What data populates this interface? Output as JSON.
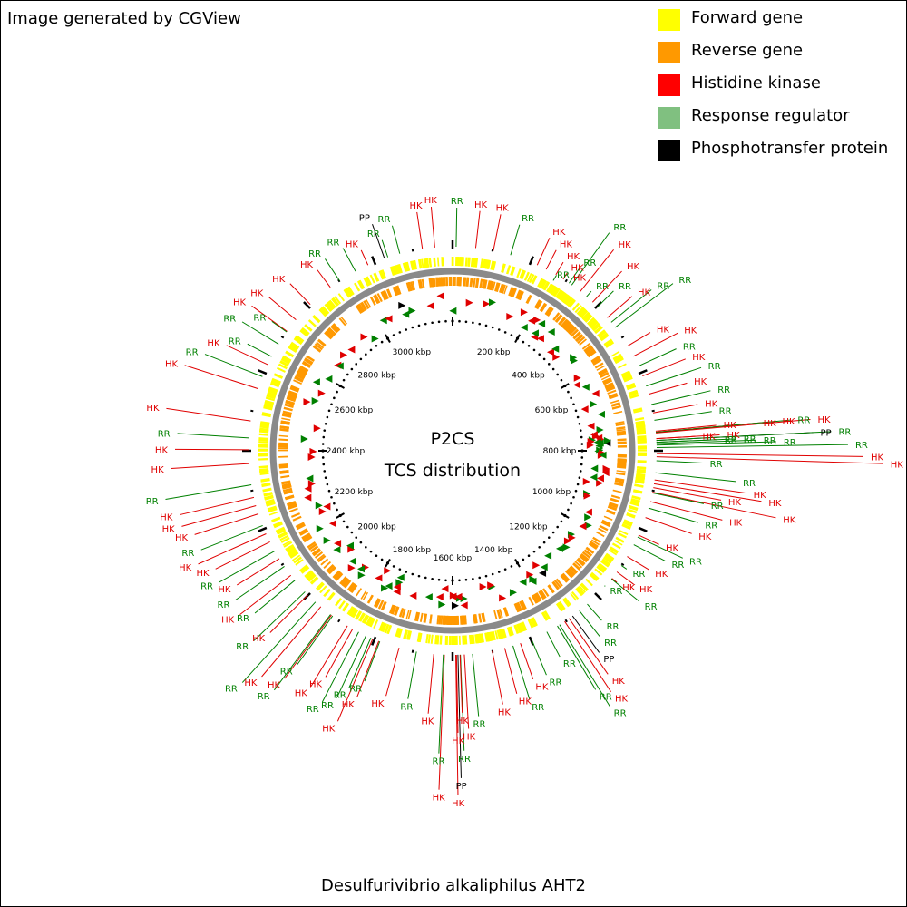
{
  "header": {
    "credit": "Image generated by CGView"
  },
  "legend": [
    {
      "label": "Forward gene",
      "color": "#ffff00"
    },
    {
      "label": "Reverse gene",
      "color": "#ff9900"
    },
    {
      "label": "Histidine kinase",
      "color": "#ff0000"
    },
    {
      "label": "Response regulator",
      "color": "#80c080"
    },
    {
      "label": "Phosphotransfer protein",
      "color": "#000000"
    }
  ],
  "map": {
    "center_title": "P2CS",
    "center_subtitle": "TCS distribution",
    "organism": "Desulfurivibrio alkaliphilus AHT2",
    "scale_labels": [
      "200 kbp",
      "400 kbp",
      "600 kbp",
      "800 kbp",
      "1000 kbp",
      "1200 kbp",
      "1400 kbp",
      "1600 kbp",
      "1800 kbp",
      "2000 kbp",
      "2200 kbp",
      "2400 kbp",
      "2600 kbp",
      "2800 kbp",
      "3000 kbp"
    ],
    "feature_labels": [
      {
        "text": "PP",
        "type": "PP",
        "a": 340.5,
        "r": 265
      },
      {
        "text": "RR",
        "type": "RR",
        "a": 341.5,
        "r": 245
      },
      {
        "text": "RR",
        "type": "RR",
        "a": 345.0,
        "r": 257
      },
      {
        "text": "HK",
        "type": "HK",
        "a": 351.5,
        "r": 266
      },
      {
        "text": "HK",
        "type": "HK",
        "a": 355.0,
        "r": 270
      },
      {
        "text": "RR",
        "type": "RR",
        "a": 1.0,
        "r": 268
      },
      {
        "text": "HK",
        "type": "HK",
        "a": 6.5,
        "r": 266
      },
      {
        "text": "HK",
        "type": "HK",
        "a": 11.5,
        "r": 266
      },
      {
        "text": "RR",
        "type": "RR",
        "a": 16.5,
        "r": 260
      },
      {
        "text": "HK",
        "type": "HK",
        "a": 24.5,
        "r": 258
      },
      {
        "text": "HK",
        "type": "HK",
        "a": 27.3,
        "r": 249
      },
      {
        "text": "HK",
        "type": "HK",
        "a": 30.4,
        "r": 241
      },
      {
        "text": "RR",
        "type": "RR",
        "a": 30.6,
        "r": 218
      },
      {
        "text": "HK",
        "type": "HK",
        "a": 32.8,
        "r": 233
      },
      {
        "text": "HK",
        "type": "HK",
        "a": 34.8,
        "r": 225
      },
      {
        "text": "RR",
        "type": "RR",
        "a": 34.8,
        "r": 245
      },
      {
        "text": "RR",
        "type": "RR",
        "a": 35.7,
        "r": 296
      },
      {
        "text": "HK",
        "type": "HK",
        "a": 38.7,
        "r": 284
      },
      {
        "text": "RR",
        "type": "RR",
        "a": 41.0,
        "r": 233
      },
      {
        "text": "HK",
        "type": "HK",
        "a": 43.3,
        "r": 272
      },
      {
        "text": "RR",
        "type": "RR",
        "a": 45.2,
        "r": 250
      },
      {
        "text": "HK",
        "type": "HK",
        "a": 49.3,
        "r": 261
      },
      {
        "text": "RR",
        "type": "RR",
        "a": 51.0,
        "r": 282
      },
      {
        "text": "RR",
        "type": "RR",
        "a": 52.8,
        "r": 305
      },
      {
        "text": "HK",
        "type": "HK",
        "a": 59.1,
        "r": 254
      },
      {
        "text": "HK",
        "type": "HK",
        "a": 62.4,
        "r": 280
      },
      {
        "text": "RR",
        "type": "RR",
        "a": 65.5,
        "r": 271
      },
      {
        "text": "HK",
        "type": "HK",
        "a": 68.5,
        "r": 276
      },
      {
        "text": "RR",
        "type": "RR",
        "a": 71.5,
        "r": 289
      },
      {
        "text": "HK",
        "type": "HK",
        "a": 73.9,
        "r": 269
      },
      {
        "text": "RR",
        "type": "RR",
        "a": 76.9,
        "r": 292
      },
      {
        "text": "HK",
        "type": "HK",
        "a": 79.3,
        "r": 275
      },
      {
        "text": "RR",
        "type": "RR",
        "a": 81.4,
        "r": 289
      },
      {
        "text": "HK",
        "type": "HK",
        "a": 84.5,
        "r": 292
      },
      {
        "text": "HK",
        "type": "HK",
        "a": 84.8,
        "r": 336
      },
      {
        "text": "HK",
        "type": "HK",
        "a": 84.8,
        "r": 357
      },
      {
        "text": "RR",
        "type": "RR",
        "a": 84.8,
        "r": 374
      },
      {
        "text": "HK",
        "type": "HK",
        "a": 85.0,
        "r": 396
      },
      {
        "text": "HK",
        "type": "HK",
        "a": 86.6,
        "r": 268
      },
      {
        "text": "HK",
        "type": "HK",
        "a": 86.6,
        "r": 295
      },
      {
        "text": "PP",
        "type": "PP",
        "a": 87.1,
        "r": 398
      },
      {
        "text": "RR",
        "type": "RR",
        "a": 87.1,
        "r": 418
      },
      {
        "text": "RR",
        "type": "RR",
        "a": 87.6,
        "r": 292
      },
      {
        "text": "RR",
        "type": "RR",
        "a": 87.6,
        "r": 313
      },
      {
        "text": "RR",
        "type": "RR",
        "a": 88.0,
        "r": 335
      },
      {
        "text": "RR",
        "type": "RR",
        "a": 88.4,
        "r": 357
      },
      {
        "text": "RR",
        "type": "RR",
        "a": 89.1,
        "r": 436
      },
      {
        "text": "HK",
        "type": "HK",
        "a": 90.8,
        "r": 453
      },
      {
        "text": "HK",
        "type": "HK",
        "a": 91.7,
        "r": 475
      },
      {
        "text": "RR",
        "type": "RR",
        "a": 92.8,
        "r": 276
      },
      {
        "text": "RR",
        "type": "RR",
        "a": 96.2,
        "r": 314
      },
      {
        "text": "HK",
        "type": "HK",
        "a": 98.2,
        "r": 327
      },
      {
        "text": "HK",
        "type": "HK",
        "a": 99.3,
        "r": 345
      },
      {
        "text": "HK",
        "type": "HK",
        "a": 100.4,
        "r": 301
      },
      {
        "text": "HK",
        "type": "HK",
        "a": 101.7,
        "r": 364
      },
      {
        "text": "RR",
        "type": "RR",
        "a": 101.9,
        "r": 283
      },
      {
        "text": "HK",
        "type": "HK",
        "a": 104.4,
        "r": 307
      },
      {
        "text": "RR",
        "type": "RR",
        "a": 106.3,
        "r": 282
      },
      {
        "text": "HK",
        "type": "HK",
        "a": 109.1,
        "r": 279
      },
      {
        "text": "HK",
        "type": "HK",
        "a": 114.4,
        "r": 250
      },
      {
        "text": "RR",
        "type": "RR",
        "a": 115.0,
        "r": 280
      },
      {
        "text": "RR",
        "type": "RR",
        "a": 117.4,
        "r": 264
      },
      {
        "text": "HK",
        "type": "HK",
        "a": 121.2,
        "r": 253
      },
      {
        "text": "RR",
        "type": "RR",
        "a": 124.2,
        "r": 232
      },
      {
        "text": "HK",
        "type": "HK",
        "a": 126.4,
        "r": 248
      },
      {
        "text": "HK",
        "type": "HK",
        "a": 128.7,
        "r": 232
      },
      {
        "text": "RR",
        "type": "RR",
        "a": 128.9,
        "r": 264
      },
      {
        "text": "RR",
        "type": "RR",
        "a": 131.6,
        "r": 224
      },
      {
        "text": "RR",
        "type": "RR",
        "a": 138.7,
        "r": 249
      },
      {
        "text": "RR",
        "type": "RR",
        "a": 141.6,
        "r": 261
      },
      {
        "text": "PP",
        "type": "PP",
        "a": 144.0,
        "r": 275
      },
      {
        "text": "HK",
        "type": "HK",
        "a": 145.2,
        "r": 300
      },
      {
        "text": "HK",
        "type": "HK",
        "a": 146.7,
        "r": 318
      },
      {
        "text": "RR",
        "type": "RR",
        "a": 148.4,
        "r": 331
      },
      {
        "text": "RR",
        "type": "RR",
        "a": 149.1,
        "r": 307
      },
      {
        "text": "RR",
        "type": "RR",
        "a": 152.5,
        "r": 256
      },
      {
        "text": "RR",
        "type": "RR",
        "a": 157.3,
        "r": 268
      },
      {
        "text": "HK",
        "type": "HK",
        "a": 160.6,
        "r": 267
      },
      {
        "text": "RR",
        "type": "RR",
        "a": 162.8,
        "r": 287
      },
      {
        "text": "HK",
        "type": "HK",
        "a": 165.2,
        "r": 277
      },
      {
        "text": "HK",
        "type": "HK",
        "a": 168.8,
        "r": 285
      },
      {
        "text": "RR",
        "type": "RR",
        "a": 174.4,
        "r": 294
      },
      {
        "text": "HK",
        "type": "HK",
        "a": 176.7,
        "r": 307
      },
      {
        "text": "RR",
        "type": "RR",
        "a": 177.8,
        "r": 331
      },
      {
        "text": "PP",
        "type": "PP",
        "a": 178.5,
        "r": 361
      },
      {
        "text": "HK",
        "type": "HK",
        "a": 179.1,
        "r": 380
      },
      {
        "text": "HK",
        "type": "HK",
        "a": 178.9,
        "r": 311
      },
      {
        "text": "HK",
        "type": "HK",
        "a": 177.9,
        "r": 289
      },
      {
        "text": "RR",
        "type": "RR",
        "a": 182.6,
        "r": 334
      },
      {
        "text": "HK",
        "type": "HK",
        "a": 182.3,
        "r": 374
      },
      {
        "text": "HK",
        "type": "HK",
        "a": 185.3,
        "r": 291
      },
      {
        "text": "RR",
        "type": "RR",
        "a": 190.2,
        "r": 278
      },
      {
        "text": "HK",
        "type": "HK",
        "a": 195.2,
        "r": 280
      },
      {
        "text": "RR",
        "type": "RR",
        "a": 200.9,
        "r": 272
      },
      {
        "text": "HK",
        "type": "HK",
        "a": 201.2,
        "r": 291
      },
      {
        "text": "HK",
        "type": "HK",
        "a": 203.0,
        "r": 324
      },
      {
        "text": "RR",
        "type": "RR",
        "a": 203.6,
        "r": 285
      },
      {
        "text": "RR",
        "type": "RR",
        "a": 205.1,
        "r": 301
      },
      {
        "text": "RR",
        "type": "RR",
        "a": 207.4,
        "r": 312
      },
      {
        "text": "HK",
        "type": "HK",
        "a": 209.3,
        "r": 286
      },
      {
        "text": "HK",
        "type": "HK",
        "a": 211.0,
        "r": 303
      },
      {
        "text": "RR",
        "type": "RR",
        "a": 216.0,
        "r": 292
      },
      {
        "text": "HK",
        "type": "HK",
        "a": 216.4,
        "r": 312
      },
      {
        "text": "RR",
        "type": "RR",
        "a": 216.7,
        "r": 329
      },
      {
        "text": "HK",
        "type": "HK",
        "a": 220.2,
        "r": 326
      },
      {
        "text": "RR",
        "type": "RR",
        "a": 222.2,
        "r": 345
      },
      {
        "text": "HK",
        "type": "HK",
        "a": 225.1,
        "r": 284
      },
      {
        "text": "RR",
        "type": "RR",
        "a": 226.3,
        "r": 303
      },
      {
        "text": "RR",
        "type": "RR",
        "a": 230.6,
        "r": 282
      },
      {
        "text": "HK",
        "type": "HK",
        "a": 232.4,
        "r": 296
      },
      {
        "text": "RR",
        "type": "RR",
        "a": 235.5,
        "r": 290
      },
      {
        "text": "HK",
        "type": "HK",
        "a": 238.1,
        "r": 280
      },
      {
        "text": "RR",
        "type": "RR",
        "a": 240.6,
        "r": 295
      },
      {
        "text": "HK",
        "type": "HK",
        "a": 243.5,
        "r": 292
      },
      {
        "text": "HK",
        "type": "HK",
        "a": 246.0,
        "r": 307
      },
      {
        "text": "RR",
        "type": "RR",
        "a": 248.5,
        "r": 298
      },
      {
        "text": "HK",
        "type": "HK",
        "a": 252.0,
        "r": 299
      },
      {
        "text": "HK",
        "type": "HK",
        "a": 254.4,
        "r": 310
      },
      {
        "text": "HK",
        "type": "HK",
        "a": 256.8,
        "r": 309
      },
      {
        "text": "RR",
        "type": "RR",
        "a": 260.4,
        "r": 321
      },
      {
        "text": "HK",
        "type": "HK",
        "a": 266.4,
        "r": 311
      },
      {
        "text": "HK",
        "type": "HK",
        "a": 270.3,
        "r": 306
      },
      {
        "text": "RR",
        "type": "RR",
        "a": 273.6,
        "r": 304
      },
      {
        "text": "HK",
        "type": "HK",
        "a": 278.4,
        "r": 319
      },
      {
        "text": "HK",
        "type": "HK",
        "a": 287.7,
        "r": 310
      },
      {
        "text": "RR",
        "type": "RR",
        "a": 291.3,
        "r": 293
      },
      {
        "text": "HK",
        "type": "HK",
        "a": 295.0,
        "r": 275
      },
      {
        "text": "RR",
        "type": "RR",
        "a": 297.5,
        "r": 255
      },
      {
        "text": "RR",
        "type": "RR",
        "a": 301.5,
        "r": 272
      },
      {
        "text": "HK",
        "type": "HK",
        "a": 305.8,
        "r": 273
      },
      {
        "text": "RR",
        "type": "RR",
        "a": 305.6,
        "r": 245
      },
      {
        "text": "HK",
        "type": "HK",
        "a": 309.9,
        "r": 264
      },
      {
        "text": "HK",
        "type": "HK",
        "a": 315.8,
        "r": 257
      },
      {
        "text": "HK",
        "type": "HK",
        "a": 323.2,
        "r": 249
      },
      {
        "text": "RR",
        "type": "RR",
        "a": 326.4,
        "r": 254
      },
      {
        "text": "RR",
        "type": "RR",
        "a": 331.6,
        "r": 254
      },
      {
        "text": "HK",
        "type": "HK",
        "a": 335.5,
        "r": 243
      }
    ]
  }
}
